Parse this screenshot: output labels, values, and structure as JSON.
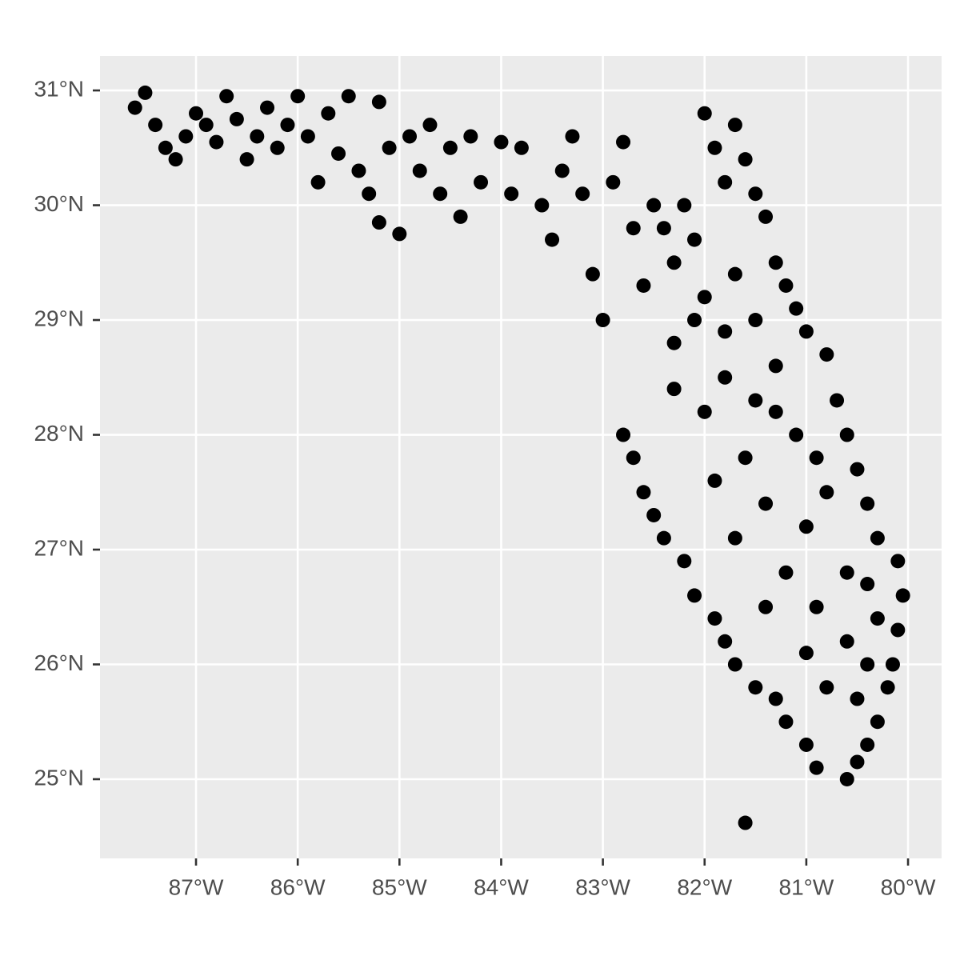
{
  "chart_data": {
    "type": "scatter",
    "color": "#000000",
    "grid": true,
    "x": [
      -87.6,
      -87.5,
      -87.4,
      -87.3,
      -87.2,
      -87.1,
      -87,
      -86.9,
      -86.8,
      -86.7,
      -86.6,
      -86.5,
      -86.4,
      -86.3,
      -86.2,
      -86.1,
      -86,
      -85.9,
      -85.8,
      -85.7,
      -85.6,
      -85.5,
      -85.4,
      -85.3,
      -85.2,
      -85.1,
      -85.2,
      -85,
      -84.9,
      -84.8,
      -84.7,
      -84.6,
      -84.5,
      -84.4,
      -84.3,
      -84.2,
      -84,
      -83.9,
      -83.8,
      -83.6,
      -83.5,
      -83.4,
      -83.3,
      -83.2,
      -83.1,
      -83,
      -82.9,
      -82.8,
      -82.7,
      -82.6,
      -82.5,
      -82.4,
      -82.3,
      -82.2,
      -82.1,
      -82,
      -81.9,
      -81.8,
      -81.7,
      -81.6,
      -81.5,
      -81.4,
      -81.3,
      -81.2,
      -81.1,
      -81,
      -80.8,
      -80.7,
      -80.6,
      -80.5,
      -80.4,
      -80.3,
      -80.1,
      -80.05,
      -80.1,
      -80.15,
      -80.2,
      -80.3,
      -80.4,
      -80.6,
      -80.5,
      -81.6,
      -82.8,
      -82.7,
      -82.6,
      -82.5,
      -82.4,
      -82.2,
      -82.1,
      -81.9,
      -81.8,
      -81.7,
      -81.5,
      -81.3,
      -81.2,
      -81,
      -80.9,
      -82.3,
      -82,
      -81.8,
      -81.5,
      -81.3,
      -81.1,
      -81.6,
      -81.9,
      -81.4,
      -81,
      -81.7,
      -81.2,
      -80.9,
      -81.4,
      -80.6,
      -80.8,
      -81,
      -82.3,
      -82.1,
      -81.8,
      -81.5,
      -81.7,
      -82,
      -81.3,
      -80.9,
      -80.8,
      -80.6,
      -80.4,
      -80.3,
      -80.4,
      -80.5
    ],
    "values": [
      30.85,
      30.98,
      30.7,
      30.5,
      30.4,
      30.6,
      30.8,
      30.7,
      30.55,
      30.95,
      30.75,
      30.4,
      30.6,
      30.85,
      30.5,
      30.7,
      30.95,
      30.6,
      30.2,
      30.8,
      30.45,
      30.95,
      30.3,
      30.1,
      30.9,
      30.5,
      29.85,
      29.75,
      30.6,
      30.3,
      30.7,
      30.1,
      30.5,
      29.9,
      30.6,
      30.2,
      30.55,
      30.1,
      30.5,
      30.0,
      29.7,
      30.3,
      30.6,
      30.1,
      29.4,
      29.0,
      30.2,
      30.55,
      29.8,
      29.3,
      30.0,
      29.8,
      29.5,
      30.0,
      29.7,
      30.8,
      30.5,
      30.2,
      30.7,
      30.4,
      30.1,
      29.9,
      29.5,
      29.3,
      29.1,
      28.9,
      28.7,
      28.3,
      28.0,
      27.7,
      27.4,
      27.1,
      26.9,
      26.6,
      26.3,
      26.0,
      25.8,
      25.5,
      25.3,
      25.0,
      25.15,
      24.62,
      28.0,
      27.8,
      27.5,
      27.3,
      27.1,
      26.9,
      26.6,
      26.4,
      26.2,
      26.0,
      25.8,
      25.7,
      25.5,
      25.3,
      25.1,
      28.4,
      28.2,
      28.5,
      28.3,
      28.6,
      28.0,
      27.8,
      27.6,
      27.4,
      27.2,
      27.1,
      26.8,
      26.5,
      26.5,
      26.2,
      25.8,
      26.1,
      28.8,
      29.0,
      28.9,
      29.0,
      29.4,
      29.2,
      28.2,
      27.8,
      27.5,
      26.8,
      26.7,
      26.4,
      26.0,
      25.7
    ],
    "xlim": [
      -87.944,
      -79.67
    ],
    "ylim": [
      24.31,
      31.3
    ],
    "xticks": [
      {
        "value": -87,
        "label": "87°W"
      },
      {
        "value": -86,
        "label": "86°W"
      },
      {
        "value": -85,
        "label": "85°W"
      },
      {
        "value": -84,
        "label": "84°W"
      },
      {
        "value": -83,
        "label": "83°W"
      },
      {
        "value": -82,
        "label": "82°W"
      },
      {
        "value": -81,
        "label": "81°W"
      },
      {
        "value": -80,
        "label": "80°W"
      }
    ],
    "yticks": [
      {
        "value": 25,
        "label": "25°N"
      },
      {
        "value": 26,
        "label": "26°N"
      },
      {
        "value": 27,
        "label": "27°N"
      },
      {
        "value": 28,
        "label": "28°N"
      },
      {
        "value": 29,
        "label": "29°N"
      },
      {
        "value": 30,
        "label": "30°N"
      },
      {
        "value": 31,
        "label": "31°N"
      }
    ]
  }
}
